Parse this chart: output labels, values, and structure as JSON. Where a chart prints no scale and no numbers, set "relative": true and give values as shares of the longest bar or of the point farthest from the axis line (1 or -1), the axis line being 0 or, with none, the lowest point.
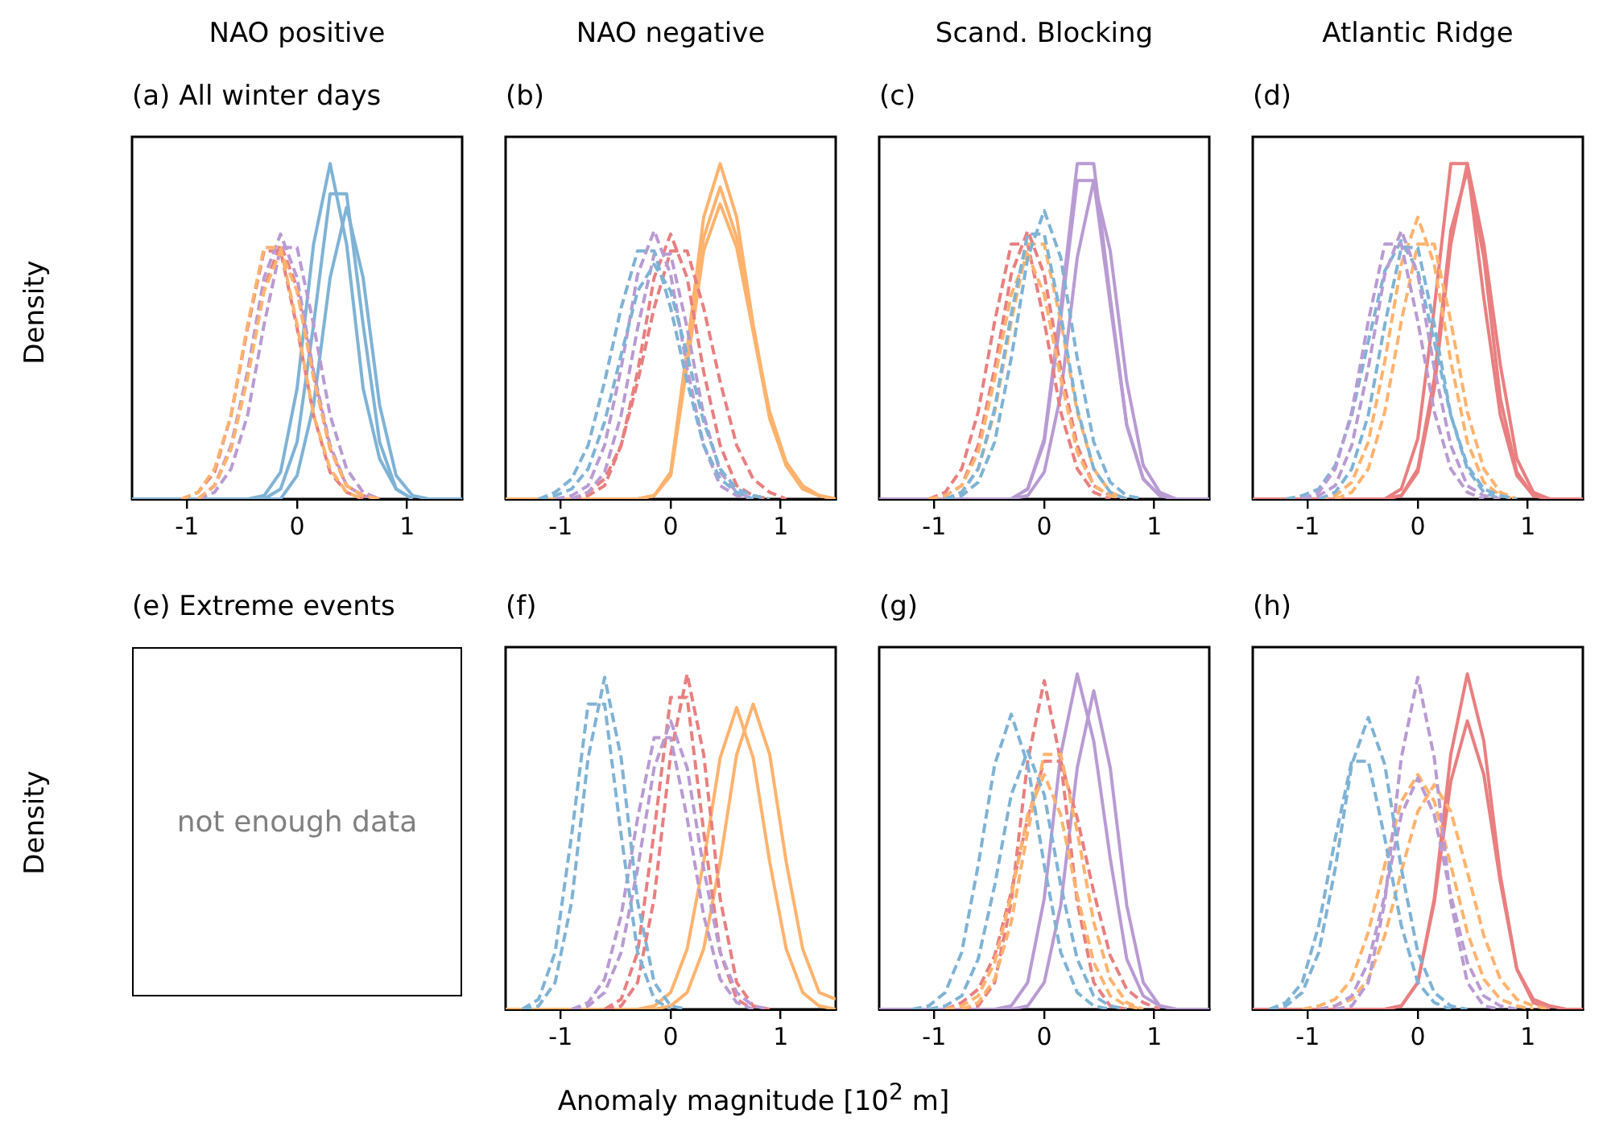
{
  "chart_data": [
    {
      "type": "line",
      "title": "NAO positive",
      "subtitle": "(a) All winter days",
      "ylabel": "Density",
      "relative": true,
      "tick_labels": "x",
      "marker": "none",
      "xlim": [
        -1.5,
        1.5
      ],
      "xticks": [
        -1,
        0,
        1
      ],
      "x": [
        -1.5,
        -1.35,
        -1.2,
        -1.05,
        -0.9,
        -0.75,
        -0.6,
        -0.45,
        -0.3,
        -0.15,
        0,
        0.15,
        0.3,
        0.45,
        0.6,
        0.75,
        0.9,
        1.05,
        1.2,
        1.35,
        1.5
      ],
      "series": [
        {
          "color": "#ffb36e",
          "line_style": "dashed",
          "values": [
            null,
            null,
            null,
            0,
            0.02,
            0.09,
            0.25,
            0.52,
            0.75,
            0.75,
            0.52,
            0.25,
            0.09,
            0.02,
            0,
            null,
            null,
            null,
            null,
            null,
            null
          ]
        },
        {
          "color": "#ffb36e",
          "line_style": "dashed",
          "values": [
            null,
            null,
            null,
            null,
            0,
            0.04,
            0.15,
            0.36,
            0.62,
            0.74,
            0.62,
            0.36,
            0.15,
            0.04,
            0.01,
            0,
            null,
            null,
            null,
            null,
            null
          ]
        },
        {
          "color": "#b99bd3",
          "line_style": "dashed",
          "values": [
            null,
            null,
            null,
            null,
            0,
            0.04,
            0.16,
            0.38,
            0.66,
            0.79,
            0.66,
            0.38,
            0.16,
            0.04,
            0.01,
            0,
            null,
            null,
            null,
            null,
            null
          ]
        },
        {
          "color": "#b99bd3",
          "line_style": "dashed",
          "values": [
            null,
            null,
            null,
            null,
            0,
            0.02,
            0.09,
            0.25,
            0.52,
            0.75,
            0.75,
            0.52,
            0.25,
            0.09,
            0.02,
            0,
            null,
            null,
            null,
            null,
            null
          ]
        },
        {
          "color": "#e97f80",
          "line_style": "dashed",
          "values": [
            null,
            null,
            null,
            null,
            0,
            0.04,
            0.15,
            0.37,
            0.63,
            0.76,
            0.63,
            0.37,
            0.15,
            0.04,
            0.01,
            0,
            null,
            null,
            null,
            null,
            null
          ]
        },
        {
          "color": "#e97f80",
          "line_style": "dashed",
          "values": [
            null,
            null,
            null,
            0,
            0.02,
            0.08,
            0.25,
            0.51,
            0.74,
            0.74,
            0.51,
            0.25,
            0.08,
            0.02,
            0,
            null,
            null,
            null,
            null,
            null,
            null
          ]
        },
        {
          "color": "#7fb3d5",
          "line_style": "solid",
          "values": [
            null,
            null,
            null,
            null,
            null,
            null,
            null,
            0,
            0.01,
            0.08,
            0.33,
            0.76,
            1,
            0.76,
            0.33,
            0.12,
            0.03,
            0,
            null,
            null,
            null
          ]
        },
        {
          "color": "#7fb3d5",
          "line_style": "solid",
          "values": [
            null,
            null,
            null,
            null,
            null,
            null,
            null,
            null,
            0,
            0.03,
            0.17,
            0.52,
            0.91,
            0.91,
            0.52,
            0.17,
            0.03,
            0,
            null,
            null,
            null
          ]
        },
        {
          "color": "#7fb3d5",
          "line_style": "solid",
          "values": [
            0,
            0,
            0,
            0,
            0,
            0,
            0,
            0,
            0,
            0,
            0.07,
            0.28,
            0.66,
            0.87,
            0.66,
            0.28,
            0.07,
            0.01,
            0,
            0,
            0
          ]
        }
      ]
    },
    {
      "type": "line",
      "title": "NAO negative",
      "subtitle": "(b)",
      "relative": true,
      "tick_labels": "x",
      "marker": "none",
      "xlim": [
        -1.5,
        1.5
      ],
      "xticks": [
        -1,
        0,
        1
      ],
      "x": [
        -1.5,
        -1.35,
        -1.2,
        -1.05,
        -0.9,
        -0.75,
        -0.6,
        -0.45,
        -0.3,
        -0.15,
        0,
        0.15,
        0.3,
        0.45,
        0.6,
        0.75,
        0.9,
        1.05,
        1.2,
        1.35,
        1.5
      ],
      "series": [
        {
          "color": "#7fb3d5",
          "line_style": "dashed",
          "values": [
            null,
            null,
            0,
            0.02,
            0.06,
            0.16,
            0.35,
            0.57,
            0.74,
            0.74,
            0.57,
            0.35,
            0.16,
            0.06,
            0.02,
            0,
            null,
            null,
            null,
            null,
            null
          ]
        },
        {
          "color": "#7fb3d5",
          "line_style": "dashed",
          "values": [
            null,
            null,
            0,
            0.01,
            0.03,
            0.09,
            0.23,
            0.43,
            0.62,
            0.7,
            0.62,
            0.43,
            0.23,
            0.09,
            0.03,
            0.01,
            0,
            null,
            null,
            null,
            null
          ]
        },
        {
          "color": "#b99bd3",
          "line_style": "dashed",
          "values": [
            null,
            null,
            null,
            0,
            0.01,
            0.04,
            0.16,
            0.39,
            0.67,
            0.8,
            0.67,
            0.39,
            0.16,
            0.04,
            0.01,
            0,
            null,
            null,
            null,
            null,
            null
          ]
        },
        {
          "color": "#b99bd3",
          "line_style": "dashed",
          "values": [
            null,
            null,
            null,
            null,
            0,
            0.02,
            0.08,
            0.25,
            0.51,
            0.73,
            0.73,
            0.51,
            0.25,
            0.08,
            0.02,
            0,
            null,
            null,
            null,
            null,
            null
          ]
        },
        {
          "color": "#e97f80",
          "line_style": "dashed",
          "values": [
            null,
            null,
            null,
            null,
            0,
            0.01,
            0.04,
            0.16,
            0.38,
            0.66,
            0.79,
            0.66,
            0.38,
            0.16,
            0.04,
            0.01,
            0,
            null,
            null,
            null,
            null
          ]
        },
        {
          "color": "#e97f80",
          "line_style": "dashed",
          "values": [
            null,
            null,
            null,
            null,
            0,
            0.02,
            0.06,
            0.16,
            0.35,
            0.57,
            0.74,
            0.74,
            0.57,
            0.35,
            0.16,
            0.06,
            0.02,
            0,
            null,
            null,
            null
          ]
        },
        {
          "color": "#ffb36e",
          "line_style": "solid",
          "values": [
            null,
            null,
            null,
            null,
            null,
            null,
            null,
            null,
            0,
            0.01,
            0.08,
            0.45,
            0.84,
            1,
            0.84,
            0.52,
            0.25,
            0.1,
            0.03,
            0.01,
            0
          ]
        },
        {
          "color": "#ffb36e",
          "line_style": "solid",
          "values": [
            null,
            null,
            null,
            null,
            null,
            null,
            null,
            null,
            0,
            0.01,
            0.07,
            0.42,
            0.78,
            0.93,
            0.78,
            0.5,
            0.24,
            0.1,
            0.03,
            0.01,
            0
          ]
        },
        {
          "color": "#ffb36e",
          "line_style": "solid",
          "values": [
            0,
            0,
            0,
            0,
            0,
            0,
            0,
            0,
            0,
            0.01,
            0.07,
            0.4,
            0.74,
            0.88,
            0.75,
            0.5,
            0.26,
            0.11,
            0.04,
            0.01,
            0
          ]
        }
      ]
    },
    {
      "type": "line",
      "title": "Scand. Blocking",
      "subtitle": "(c)",
      "relative": true,
      "tick_labels": "x",
      "marker": "none",
      "xlim": [
        -1.5,
        1.5
      ],
      "xticks": [
        -1,
        0,
        1
      ],
      "x": [
        -1.5,
        -1.35,
        -1.2,
        -1.05,
        -0.9,
        -0.75,
        -0.6,
        -0.45,
        -0.3,
        -0.15,
        0,
        0.15,
        0.3,
        0.45,
        0.6,
        0.75,
        0.9,
        1.05,
        1.2,
        1.35,
        1.5
      ],
      "series": [
        {
          "color": "#7fb3d5",
          "line_style": "dashed",
          "values": [
            null,
            null,
            null,
            null,
            0,
            0.01,
            0.05,
            0.17,
            0.42,
            0.72,
            0.86,
            0.72,
            0.42,
            0.17,
            0.05,
            0.01,
            0,
            null,
            null,
            null,
            null
          ]
        },
        {
          "color": "#7fb3d5",
          "line_style": "dashed",
          "values": [
            null,
            null,
            null,
            null,
            0,
            0.02,
            0.09,
            0.27,
            0.55,
            0.79,
            0.79,
            0.55,
            0.27,
            0.09,
            0.02,
            0,
            null,
            null,
            null,
            null,
            null
          ]
        },
        {
          "color": "#ffb36e",
          "line_style": "dashed",
          "values": [
            null,
            null,
            null,
            null,
            0,
            0.02,
            0.09,
            0.26,
            0.53,
            0.76,
            0.76,
            0.53,
            0.26,
            0.09,
            0.02,
            0,
            null,
            null,
            null,
            null,
            null
          ]
        },
        {
          "color": "#ffb36e",
          "line_style": "dashed",
          "values": [
            null,
            null,
            null,
            0,
            0.01,
            0.04,
            0.14,
            0.36,
            0.61,
            0.73,
            0.61,
            0.36,
            0.14,
            0.04,
            0.01,
            0,
            null,
            null,
            null,
            null,
            null
          ]
        },
        {
          "color": "#e97f80",
          "line_style": "dashed",
          "values": [
            null,
            null,
            null,
            0,
            0.01,
            0.04,
            0.16,
            0.39,
            0.67,
            0.8,
            0.67,
            0.39,
            0.16,
            0.04,
            0.01,
            0,
            null,
            null,
            null,
            null,
            null
          ]
        },
        {
          "color": "#e97f80",
          "line_style": "dashed",
          "values": [
            null,
            null,
            null,
            0,
            0.02,
            0.09,
            0.26,
            0.53,
            0.76,
            0.76,
            0.53,
            0.26,
            0.09,
            0.02,
            0,
            null,
            null,
            null,
            null,
            null,
            null
          ]
        },
        {
          "color": "#b99bd3",
          "line_style": "solid",
          "values": [
            null,
            null,
            null,
            null,
            null,
            null,
            null,
            null,
            0,
            0.03,
            0.18,
            0.57,
            1,
            1,
            0.6,
            0.22,
            0.06,
            0.01,
            0,
            null,
            null
          ]
        },
        {
          "color": "#b99bd3",
          "line_style": "solid",
          "values": [
            null,
            null,
            null,
            null,
            null,
            null,
            null,
            null,
            0,
            0.01,
            0.08,
            0.31,
            0.72,
            0.95,
            0.74,
            0.35,
            0.1,
            0.02,
            0,
            null,
            null
          ]
        },
        {
          "color": "#b99bd3",
          "line_style": "solid",
          "values": [
            0,
            0,
            0,
            0,
            0,
            0,
            0,
            0,
            0,
            0.03,
            0.17,
            0.54,
            0.95,
            0.95,
            0.58,
            0.22,
            0.06,
            0.01,
            0,
            0,
            0
          ]
        }
      ]
    },
    {
      "type": "line",
      "title": "Atlantic Ridge",
      "subtitle": "(d)",
      "relative": true,
      "tick_labels": "x",
      "marker": "none",
      "xlim": [
        -1.5,
        1.5
      ],
      "xticks": [
        -1,
        0,
        1
      ],
      "x": [
        -1.5,
        -1.35,
        -1.2,
        -1.05,
        -0.9,
        -0.75,
        -0.6,
        -0.45,
        -0.3,
        -0.15,
        0,
        0.15,
        0.3,
        0.45,
        0.6,
        0.75,
        0.9,
        1.05,
        1.2,
        1.35,
        1.5
      ],
      "series": [
        {
          "color": "#b99bd3",
          "line_style": "dashed",
          "values": [
            null,
            null,
            null,
            0,
            0.01,
            0.04,
            0.16,
            0.39,
            0.67,
            0.8,
            0.67,
            0.39,
            0.16,
            0.04,
            0.01,
            0,
            null,
            null,
            null,
            null,
            null
          ]
        },
        {
          "color": "#b99bd3",
          "line_style": "dashed",
          "values": [
            null,
            null,
            null,
            0,
            0.02,
            0.09,
            0.26,
            0.53,
            0.76,
            0.76,
            0.53,
            0.26,
            0.09,
            0.02,
            0,
            null,
            null,
            null,
            null,
            null,
            null
          ]
        },
        {
          "color": "#7fb3d5",
          "line_style": "dashed",
          "values": [
            null,
            null,
            0,
            0.01,
            0.03,
            0.1,
            0.25,
            0.47,
            0.68,
            0.77,
            0.68,
            0.47,
            0.25,
            0.1,
            0.03,
            0.01,
            0,
            null,
            null,
            null,
            null
          ]
        },
        {
          "color": "#7fb3d5",
          "line_style": "dashed",
          "values": [
            null,
            null,
            null,
            null,
            0,
            0.02,
            0.09,
            0.25,
            0.52,
            0.75,
            0.75,
            0.52,
            0.25,
            0.09,
            0.02,
            0,
            null,
            null,
            null,
            null,
            null
          ]
        },
        {
          "color": "#ffb36e",
          "line_style": "dashed",
          "values": [
            null,
            null,
            null,
            null,
            0,
            0.01,
            0.05,
            0.17,
            0.41,
            0.7,
            0.84,
            0.7,
            0.41,
            0.17,
            0.05,
            0.01,
            0,
            null,
            null,
            null,
            null
          ]
        },
        {
          "color": "#ffb36e",
          "line_style": "dashed",
          "values": [
            null,
            null,
            null,
            null,
            null,
            0,
            0.02,
            0.09,
            0.26,
            0.53,
            0.76,
            0.76,
            0.53,
            0.26,
            0.09,
            0.02,
            0,
            null,
            null,
            null,
            null
          ]
        },
        {
          "color": "#e97f80",
          "line_style": "solid",
          "values": [
            null,
            null,
            null,
            null,
            null,
            null,
            null,
            null,
            0,
            0.03,
            0.18,
            0.57,
            1,
            1,
            0.6,
            0.25,
            0.07,
            0.01,
            0,
            null,
            null
          ]
        },
        {
          "color": "#e97f80",
          "line_style": "solid",
          "values": [
            null,
            null,
            null,
            null,
            null,
            null,
            null,
            null,
            0,
            0.01,
            0.08,
            0.33,
            0.76,
            1,
            0.76,
            0.4,
            0.12,
            0.02,
            0,
            null,
            null
          ]
        },
        {
          "color": "#e97f80",
          "line_style": "solid",
          "values": [
            0,
            0,
            0,
            0,
            0,
            0,
            0,
            0,
            0,
            0.01,
            0.09,
            0.36,
            0.8,
            0.98,
            0.72,
            0.3,
            0.08,
            0.01,
            0,
            0,
            0
          ]
        }
      ]
    },
    {
      "type": "other",
      "title": "(e) Extreme events",
      "ylabel": "Density",
      "annotations": [
        "not enough data"
      ]
    },
    {
      "type": "line",
      "title": "(f)",
      "xlabel": "Anomaly magnitude [10$^{2}$ m]",
      "relative": true,
      "tick_labels": "x",
      "marker": "none",
      "xlim": [
        -1.5,
        1.5
      ],
      "xticks": [
        -1,
        0,
        1
      ],
      "x": [
        -1.5,
        -1.35,
        -1.2,
        -1.05,
        -0.9,
        -0.75,
        -0.6,
        -0.45,
        -0.3,
        -0.15,
        0,
        0.15,
        0.3,
        0.45,
        0.6,
        0.75,
        0.9,
        1.05,
        1.2,
        1.35,
        1.5
      ],
      "series": [
        {
          "color": "#7fb3d5",
          "line_style": "dashed",
          "values": [
            null,
            0,
            0.01,
            0.08,
            0.32,
            0.75,
            0.99,
            0.75,
            0.32,
            0.08,
            0.01,
            0,
            null,
            null,
            null,
            null,
            null,
            null,
            null,
            null,
            null
          ]
        },
        {
          "color": "#7fb3d5",
          "line_style": "dashed",
          "values": [
            null,
            0,
            0.03,
            0.17,
            0.52,
            0.91,
            0.91,
            0.52,
            0.17,
            0.03,
            0,
            null,
            null,
            null,
            null,
            null,
            null,
            null,
            null,
            null,
            null
          ]
        },
        {
          "color": "#b99bd3",
          "line_style": "dashed",
          "values": [
            null,
            null,
            null,
            null,
            0,
            0.01,
            0.05,
            0.17,
            0.42,
            0.72,
            0.86,
            0.72,
            0.42,
            0.17,
            0.05,
            0.01,
            0,
            null,
            null,
            null,
            null
          ]
        },
        {
          "color": "#b99bd3",
          "line_style": "dashed",
          "values": [
            null,
            null,
            null,
            null,
            0,
            0.02,
            0.09,
            0.28,
            0.57,
            0.81,
            0.81,
            0.57,
            0.28,
            0.09,
            0.02,
            0,
            null,
            null,
            null,
            null,
            null
          ]
        },
        {
          "color": "#e97f80",
          "line_style": "dashed",
          "values": [
            null,
            null,
            null,
            null,
            null,
            null,
            0,
            0.01,
            0.08,
            0.33,
            0.76,
            1,
            0.76,
            0.33,
            0.08,
            0.01,
            0,
            null,
            null,
            null,
            null
          ]
        },
        {
          "color": "#e97f80",
          "line_style": "dashed",
          "values": [
            null,
            null,
            null,
            null,
            null,
            null,
            0,
            0.03,
            0.17,
            0.53,
            0.93,
            0.93,
            0.53,
            0.17,
            0.03,
            0,
            null,
            null,
            null,
            null,
            null
          ]
        },
        {
          "color": "#ffb36e",
          "line_style": "solid",
          "values": [
            null,
            null,
            null,
            null,
            null,
            null,
            null,
            null,
            0,
            0.01,
            0.05,
            0.18,
            0.44,
            0.75,
            0.9,
            0.75,
            0.44,
            0.18,
            0.05,
            0.01,
            0
          ]
        },
        {
          "color": "#ffb36e",
          "line_style": "solid",
          "values": [
            0,
            0,
            0,
            0,
            0,
            0,
            0,
            0,
            0,
            0,
            0.01,
            0.05,
            0.18,
            0.44,
            0.76,
            0.91,
            0.76,
            0.44,
            0.18,
            0.05,
            0.03
          ]
        }
      ]
    },
    {
      "type": "line",
      "title": "(g)",
      "relative": true,
      "tick_labels": "x",
      "marker": "none",
      "xlim": [
        -1.5,
        1.5
      ],
      "xticks": [
        -1,
        0,
        1
      ],
      "x": [
        -1.5,
        -1.35,
        -1.2,
        -1.05,
        -0.9,
        -0.75,
        -0.6,
        -0.45,
        -0.3,
        -0.15,
        0,
        0.15,
        0.3,
        0.45,
        0.6,
        0.75,
        0.9,
        1.05,
        1.2,
        1.35,
        1.5
      ],
      "series": [
        {
          "color": "#7fb3d5",
          "line_style": "dashed",
          "values": [
            null,
            null,
            0,
            0.01,
            0.05,
            0.17,
            0.43,
            0.73,
            0.88,
            0.73,
            0.43,
            0.17,
            0.05,
            0.01,
            0,
            null,
            null,
            null,
            null,
            null,
            null
          ]
        },
        {
          "color": "#7fb3d5",
          "line_style": "dashed",
          "values": [
            null,
            null,
            null,
            0,
            0.01,
            0.04,
            0.15,
            0.37,
            0.64,
            0.77,
            0.64,
            0.37,
            0.15,
            0.04,
            0.01,
            0,
            null,
            null,
            null,
            null,
            null
          ]
        },
        {
          "color": "#ffb36e",
          "line_style": "dashed",
          "values": [
            null,
            null,
            null,
            null,
            null,
            0,
            0.02,
            0.09,
            0.26,
            0.53,
            0.76,
            0.76,
            0.53,
            0.26,
            0.09,
            0.02,
            0,
            null,
            null,
            null,
            null
          ]
        },
        {
          "color": "#ffb36e",
          "line_style": "dashed",
          "values": [
            null,
            null,
            null,
            null,
            0,
            0.01,
            0.04,
            0.14,
            0.34,
            0.58,
            0.7,
            0.58,
            0.34,
            0.14,
            0.04,
            0.01,
            0,
            null,
            null,
            null,
            null
          ]
        },
        {
          "color": "#e97f80",
          "line_style": "dashed",
          "values": [
            null,
            null,
            null,
            null,
            null,
            0,
            0.01,
            0.08,
            0.32,
            0.74,
            0.98,
            0.74,
            0.32,
            0.08,
            0.01,
            0,
            null,
            null,
            null,
            null,
            null
          ]
        },
        {
          "color": "#e97f80",
          "line_style": "dashed",
          "values": [
            null,
            null,
            null,
            null,
            0,
            0.02,
            0.06,
            0.16,
            0.35,
            0.57,
            0.74,
            0.74,
            0.57,
            0.35,
            0.16,
            0.06,
            0.02,
            0,
            null,
            null,
            null
          ]
        },
        {
          "color": "#b99bd3",
          "line_style": "solid",
          "values": [
            null,
            null,
            null,
            null,
            null,
            null,
            null,
            0,
            0.01,
            0.08,
            0.33,
            0.76,
            1,
            0.8,
            0.45,
            0.15,
            0.04,
            0.01,
            0,
            null,
            null
          ]
        },
        {
          "color": "#b99bd3",
          "line_style": "solid",
          "values": [
            0,
            0,
            0,
            0,
            0,
            0,
            0,
            0,
            0,
            0.01,
            0.08,
            0.31,
            0.72,
            0.95,
            0.72,
            0.31,
            0.08,
            0.01,
            0,
            0,
            0
          ]
        }
      ]
    },
    {
      "type": "line",
      "title": "(h)",
      "relative": true,
      "tick_labels": "x",
      "marker": "none",
      "xlim": [
        -1.5,
        1.5
      ],
      "xticks": [
        -1,
        0,
        1
      ],
      "x": [
        -1.5,
        -1.35,
        -1.2,
        -1.05,
        -0.9,
        -0.75,
        -0.6,
        -0.45,
        -0.3,
        -0.15,
        0,
        0.15,
        0.3,
        0.45,
        0.6,
        0.75,
        0.9,
        1.05,
        1.2,
        1.35,
        1.5
      ],
      "series": [
        {
          "color": "#7fb3d5",
          "line_style": "dashed",
          "values": [
            null,
            0,
            0.01,
            0.05,
            0.17,
            0.42,
            0.73,
            0.87,
            0.73,
            0.42,
            0.17,
            0.05,
            0.01,
            0,
            null,
            null,
            null,
            null,
            null,
            null,
            null
          ]
        },
        {
          "color": "#7fb3d5",
          "line_style": "dashed",
          "values": [
            null,
            0,
            0.02,
            0.08,
            0.25,
            0.51,
            0.74,
            0.74,
            0.51,
            0.25,
            0.08,
            0.02,
            0,
            null,
            null,
            null,
            null,
            null,
            null,
            null,
            null
          ]
        },
        {
          "color": "#b99bd3",
          "line_style": "dashed",
          "values": [
            null,
            null,
            null,
            null,
            null,
            0,
            0.01,
            0.08,
            0.32,
            0.75,
            0.99,
            0.75,
            0.32,
            0.08,
            0.01,
            0,
            null,
            null,
            null,
            null,
            null
          ]
        },
        {
          "color": "#b99bd3",
          "line_style": "dashed",
          "values": [
            null,
            null,
            null,
            null,
            0,
            0.01,
            0.04,
            0.14,
            0.34,
            0.58,
            0.69,
            0.58,
            0.34,
            0.14,
            0.04,
            0.01,
            0,
            null,
            null,
            null,
            null
          ]
        },
        {
          "color": "#ffb36e",
          "line_style": "dashed",
          "values": [
            null,
            null,
            null,
            0,
            0.01,
            0.03,
            0.09,
            0.23,
            0.43,
            0.62,
            0.7,
            0.62,
            0.43,
            0.23,
            0.09,
            0.03,
            0.01,
            0,
            null,
            null,
            null
          ]
        },
        {
          "color": "#ffb36e",
          "line_style": "dashed",
          "values": [
            null,
            null,
            null,
            null,
            0,
            0.01,
            0.03,
            0.09,
            0.22,
            0.41,
            0.59,
            0.67,
            0.59,
            0.41,
            0.22,
            0.09,
            0.03,
            0.01,
            0,
            null,
            null
          ]
        },
        {
          "color": "#e97f80",
          "line_style": "solid",
          "values": [
            null,
            null,
            null,
            null,
            null,
            null,
            null,
            null,
            0,
            0.01,
            0.08,
            0.33,
            0.76,
            1,
            0.8,
            0.4,
            0.12,
            0.02,
            0,
            null,
            null
          ]
        },
        {
          "color": "#e97f80",
          "line_style": "solid",
          "values": [
            0,
            0,
            0,
            0,
            0,
            0,
            0,
            0,
            0,
            0.01,
            0.08,
            0.32,
            0.68,
            0.86,
            0.7,
            0.38,
            0.12,
            0.03,
            0.01,
            0,
            0
          ]
        }
      ]
    }
  ]
}
